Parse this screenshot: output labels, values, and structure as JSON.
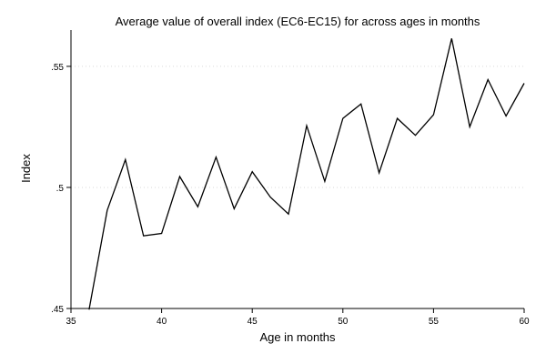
{
  "chart_data": {
    "type": "line",
    "title": "Average value of overall index (EC6-EC15) for across ages in months",
    "xlabel": "Age in months",
    "ylabel": "Index",
    "xlim": [
      35,
      60
    ],
    "ylim": [
      0.45,
      0.565
    ],
    "xticks": [
      35,
      40,
      45,
      50,
      55,
      60
    ],
    "xtick_labels": [
      "35",
      "40",
      "45",
      "50",
      "55",
      "60"
    ],
    "yticks": [
      0.45,
      0.5,
      0.55
    ],
    "ytick_labels": [
      ".45",
      ".5",
      ".55"
    ],
    "grid": true,
    "line_color": "#000000",
    "x": [
      36,
      37,
      38,
      39,
      40,
      41,
      42,
      43,
      44,
      45,
      46,
      47,
      48,
      49,
      50,
      51,
      52,
      53,
      54,
      55,
      56,
      57,
      58,
      59,
      60
    ],
    "values": [
      0.4495,
      0.4905,
      0.5115,
      0.48,
      0.481,
      0.5045,
      0.492,
      0.5125,
      0.4912,
      0.5065,
      0.496,
      0.489,
      0.5255,
      0.5025,
      0.5285,
      0.5345,
      0.506,
      0.5285,
      0.5215,
      0.53,
      0.5615,
      0.525,
      0.5445,
      0.5295,
      0.543
    ]
  }
}
